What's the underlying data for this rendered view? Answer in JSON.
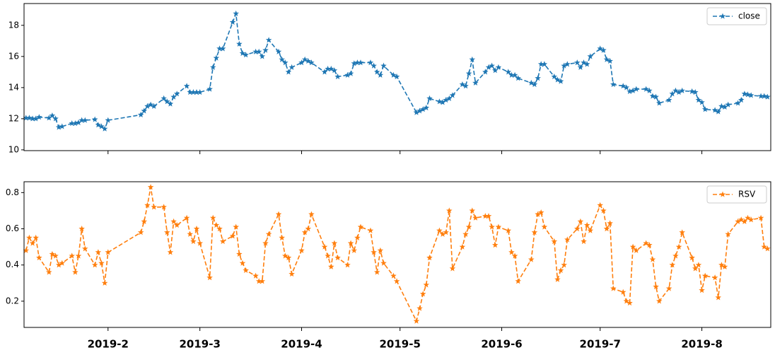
{
  "chart_data": [
    {
      "type": "line",
      "x": [
        6,
        7,
        8,
        9,
        10,
        13,
        14,
        15,
        16,
        17,
        20,
        21,
        22,
        23,
        24,
        27,
        28,
        29,
        30,
        31,
        41,
        42,
        43,
        44,
        45,
        48,
        49,
        50,
        51,
        52,
        55,
        56,
        57,
        58,
        59,
        62,
        63,
        64,
        65,
        66,
        69,
        70,
        71,
        72,
        73,
        76,
        77,
        78,
        79,
        80,
        83,
        84,
        85,
        86,
        87,
        90,
        91,
        92,
        93,
        97,
        98,
        99,
        100,
        101,
        104,
        105,
        106,
        107,
        108,
        111,
        112,
        113,
        114,
        115,
        118,
        119,
        125,
        126,
        127,
        128,
        129,
        132,
        133,
        134,
        135,
        136,
        139,
        140,
        141,
        142,
        143,
        146,
        147,
        148,
        149,
        150,
        153,
        154,
        155,
        156,
        160,
        161,
        162,
        163,
        164,
        167,
        168,
        169,
        170,
        171,
        174,
        175,
        176,
        177,
        178,
        181,
        182,
        183,
        184,
        185,
        188,
        189,
        190,
        191,
        192,
        195,
        196,
        197,
        198,
        199,
        202,
        203,
        204,
        205,
        206,
        209,
        210,
        211,
        212,
        213,
        216,
        217,
        218,
        219,
        220,
        223,
        224,
        225,
        226,
        227,
        230,
        231,
        232
      ],
      "series": [
        {
          "name": "close",
          "color": "#1f77b4",
          "values": [
            12.05,
            12.05,
            12.0,
            12.0,
            12.1,
            12.05,
            12.2,
            12.0,
            11.45,
            11.5,
            11.7,
            11.7,
            11.75,
            11.9,
            11.9,
            11.95,
            11.6,
            11.5,
            11.35,
            11.9,
            12.25,
            12.5,
            12.8,
            12.9,
            12.8,
            13.3,
            13.1,
            12.95,
            13.4,
            13.6,
            14.1,
            13.7,
            13.7,
            13.7,
            13.7,
            13.9,
            15.3,
            15.9,
            16.5,
            16.5,
            18.2,
            18.75,
            16.8,
            16.2,
            16.1,
            16.3,
            16.3,
            16.0,
            16.4,
            17.05,
            16.3,
            15.8,
            15.6,
            15.0,
            15.3,
            15.6,
            15.8,
            15.7,
            15.6,
            15.0,
            15.2,
            15.2,
            15.1,
            14.7,
            14.8,
            14.9,
            15.55,
            15.6,
            15.6,
            15.6,
            15.4,
            15.0,
            14.8,
            15.4,
            14.8,
            14.7,
            12.4,
            12.5,
            12.6,
            12.7,
            13.3,
            13.1,
            13.05,
            13.2,
            13.3,
            13.5,
            14.2,
            14.1,
            14.9,
            15.8,
            14.3,
            15.0,
            15.3,
            15.4,
            15.1,
            15.3,
            15.0,
            14.8,
            14.8,
            14.6,
            14.3,
            14.2,
            14.6,
            15.5,
            15.5,
            14.7,
            14.5,
            14.4,
            15.4,
            15.5,
            15.6,
            15.3,
            15.6,
            15.5,
            16.0,
            16.5,
            16.4,
            15.8,
            15.7,
            14.2,
            14.1,
            14.0,
            13.75,
            13.8,
            13.9,
            13.9,
            13.8,
            13.45,
            13.4,
            13.0,
            13.2,
            13.6,
            13.8,
            13.7,
            13.8,
            13.75,
            13.7,
            13.2,
            13.05,
            12.6,
            12.55,
            12.45,
            12.8,
            12.75,
            12.9,
            13.0,
            13.2,
            13.6,
            13.55,
            13.5,
            13.45,
            13.45,
            13.4
          ]
        }
      ],
      "xlim": [
        5.4,
        233
      ],
      "ylim": [
        9.95,
        19.4
      ],
      "yticks": [
        10,
        12,
        14,
        16,
        18
      ],
      "legend": "upper right"
    },
    {
      "type": "line",
      "x": [
        6,
        7,
        8,
        9,
        10,
        13,
        14,
        15,
        16,
        17,
        20,
        21,
        22,
        23,
        24,
        27,
        28,
        29,
        30,
        31,
        41,
        42,
        43,
        44,
        45,
        48,
        49,
        50,
        51,
        52,
        55,
        56,
        57,
        58,
        59,
        62,
        63,
        64,
        65,
        66,
        69,
        70,
        71,
        72,
        73,
        76,
        77,
        78,
        79,
        80,
        83,
        84,
        85,
        86,
        87,
        90,
        91,
        92,
        93,
        97,
        98,
        99,
        100,
        101,
        104,
        105,
        106,
        107,
        108,
        111,
        112,
        113,
        114,
        115,
        118,
        119,
        125,
        126,
        127,
        128,
        129,
        132,
        133,
        134,
        135,
        136,
        139,
        140,
        141,
        142,
        143,
        146,
        147,
        148,
        149,
        150,
        153,
        154,
        155,
        156,
        160,
        161,
        162,
        163,
        164,
        167,
        168,
        169,
        170,
        171,
        174,
        175,
        176,
        177,
        178,
        181,
        182,
        183,
        184,
        185,
        188,
        189,
        190,
        191,
        192,
        195,
        196,
        197,
        198,
        199,
        202,
        203,
        204,
        205,
        206,
        209,
        210,
        211,
        212,
        213,
        216,
        217,
        218,
        219,
        220,
        223,
        224,
        225,
        226,
        227,
        230,
        231,
        232
      ],
      "series": [
        {
          "name": "RSV",
          "color": "#ff7f0e",
          "values": [
            0.48,
            0.55,
            0.52,
            0.55,
            0.44,
            0.36,
            0.46,
            0.45,
            0.4,
            0.41,
            0.45,
            0.36,
            0.45,
            0.6,
            0.49,
            0.4,
            0.47,
            0.41,
            0.3,
            0.47,
            0.58,
            0.64,
            0.73,
            0.83,
            0.72,
            0.72,
            0.58,
            0.47,
            0.64,
            0.62,
            0.66,
            0.57,
            0.53,
            0.6,
            0.52,
            0.33,
            0.66,
            0.62,
            0.6,
            0.53,
            0.56,
            0.61,
            0.46,
            0.41,
            0.37,
            0.34,
            0.31,
            0.31,
            0.52,
            0.57,
            0.68,
            0.55,
            0.45,
            0.44,
            0.35,
            0.48,
            0.58,
            0.6,
            0.68,
            0.5,
            0.45,
            0.39,
            0.52,
            0.44,
            0.4,
            0.52,
            0.48,
            0.55,
            0.61,
            0.59,
            0.47,
            0.36,
            0.48,
            0.41,
            0.34,
            0.31,
            0.09,
            0.16,
            0.24,
            0.29,
            0.44,
            0.59,
            0.57,
            0.58,
            0.7,
            0.38,
            0.5,
            0.57,
            0.61,
            0.7,
            0.66,
            0.67,
            0.67,
            0.61,
            0.51,
            0.61,
            0.59,
            0.47,
            0.45,
            0.31,
            0.43,
            0.58,
            0.68,
            0.69,
            0.61,
            0.53,
            0.32,
            0.37,
            0.4,
            0.54,
            0.6,
            0.64,
            0.53,
            0.62,
            0.59,
            0.73,
            0.7,
            0.6,
            0.63,
            0.27,
            0.25,
            0.2,
            0.19,
            0.5,
            0.48,
            0.52,
            0.51,
            0.43,
            0.28,
            0.2,
            0.27,
            0.4,
            0.45,
            0.5,
            0.58,
            0.44,
            0.38,
            0.4,
            0.26,
            0.34,
            0.33,
            0.22,
            0.4,
            0.39,
            0.57,
            0.64,
            0.65,
            0.64,
            0.66,
            0.65,
            0.66,
            0.5,
            0.49
          ]
        }
      ],
      "xlim": [
        5.4,
        233
      ],
      "ylim": [
        0.055,
        0.86
      ],
      "yticks": [
        0.2,
        0.4,
        0.6,
        0.8
      ],
      "legend": "upper right",
      "xticks": [
        {
          "value": 31,
          "label": "2019-2"
        },
        {
          "value": 59,
          "label": "2019-3"
        },
        {
          "value": 90,
          "label": "2019-4"
        },
        {
          "value": 120,
          "label": "2019-5"
        },
        {
          "value": 151,
          "label": "2019-6"
        },
        {
          "value": 181,
          "label": "2019-7"
        },
        {
          "value": 212,
          "label": "2019-8"
        }
      ]
    }
  ]
}
